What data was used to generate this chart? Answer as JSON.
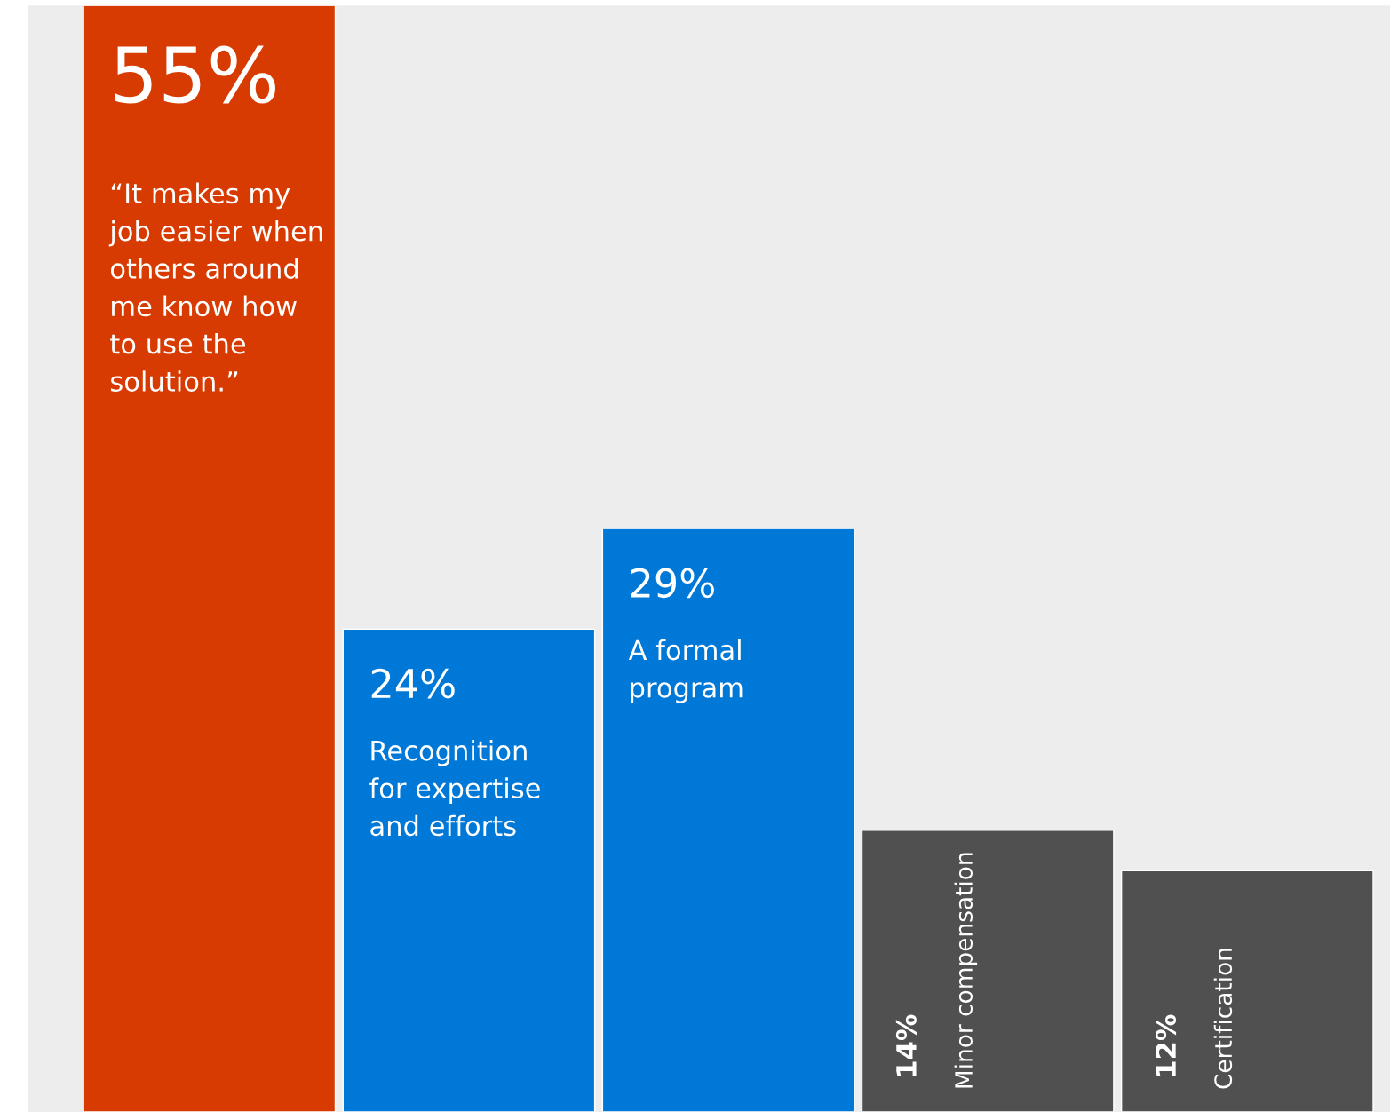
{
  "chart_data": {
    "type": "bar",
    "categories": [
      "“It makes my\njob easier when\nothers around\nme know how\nto use the\nsolution.”",
      "Recognition\nfor expertise\nand efforts",
      "A formal\nprogram",
      "Minor compensation",
      "Certification"
    ],
    "values": [
      55,
      24,
      29,
      14,
      12
    ],
    "colors": [
      "#d83b01",
      "#0078d7",
      "#0078d7",
      "#505050",
      "#505050"
    ],
    "value_labels": [
      "55%",
      "24%",
      "29%",
      "14%",
      "12%"
    ]
  }
}
